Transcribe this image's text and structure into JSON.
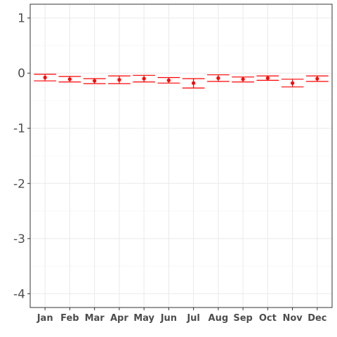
{
  "chart_data": {
    "type": "scatter",
    "title": "",
    "xlabel": "",
    "ylabel": "",
    "categories": [
      "Jan",
      "Feb",
      "Mar",
      "Apr",
      "May",
      "Jun",
      "Jul",
      "Aug",
      "Sep",
      "Oct",
      "Nov",
      "Dec"
    ],
    "ylim": [
      -4.25,
      1.25
    ],
    "yticks": [
      -4,
      -3,
      -2,
      -1,
      0,
      1
    ],
    "grid": true,
    "series": [
      {
        "color": "#ff0000",
        "values": [
          -0.08,
          -0.11,
          -0.14,
          -0.12,
          -0.1,
          -0.13,
          -0.18,
          -0.09,
          -0.11,
          -0.09,
          -0.18,
          -0.1
        ],
        "lower": [
          -0.14,
          -0.16,
          -0.19,
          -0.19,
          -0.16,
          -0.18,
          -0.27,
          -0.15,
          -0.16,
          -0.13,
          -0.25,
          -0.15
        ],
        "upper": [
          -0.02,
          -0.06,
          -0.1,
          -0.05,
          -0.04,
          -0.08,
          -0.1,
          -0.03,
          -0.07,
          -0.05,
          -0.11,
          -0.05
        ]
      }
    ]
  }
}
